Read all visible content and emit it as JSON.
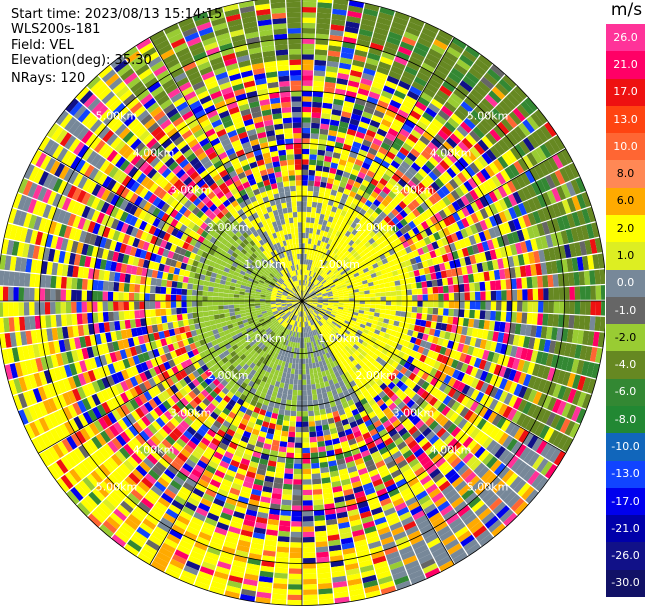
{
  "header": {
    "start_time": "Start time: 2023/08/13 15:14:15",
    "instrument": "WLS200s-181",
    "field": "Field: VEL",
    "elevation": "Elevation(deg): 35.30",
    "nrays": "NRays: 120"
  },
  "colorbar": {
    "unit": "m/s",
    "ticks": [
      "26.0",
      "21.0",
      "17.0",
      "13.0",
      "10.0",
      "8.0",
      "6.0",
      "2.0",
      "1.0",
      "0.0",
      "-1.0",
      "-2.0",
      "-4.0",
      "-6.0",
      "-8.0",
      "-10.0",
      "-13.0",
      "-17.0",
      "-21.0",
      "-26.0",
      "-30.0"
    ],
    "colors": [
      "#ff3399",
      "#ff0066",
      "#ee1111",
      "#ff4411",
      "#ff6633",
      "#ff8855",
      "#ffaa00",
      "#ffff00",
      "#ddee22",
      "#778899",
      "#666666",
      "#99cc33",
      "#668822",
      "#338833",
      "#228833",
      "#1166bb",
      "#1144ff",
      "#0000ee",
      "#0000aa",
      "#111188",
      "#111166"
    ]
  },
  "chart_data": {
    "type": "ppi",
    "field": "VEL",
    "units": "m/s",
    "n_rays": 120,
    "elevation_deg": 35.3,
    "start_time": "2023/08/13 15:14:15",
    "range_rings_km": [
      1,
      2,
      3,
      4,
      5
    ],
    "ring_labels": [
      "1.00km",
      "2.00km",
      "3.00km",
      "4.00km",
      "5.00km"
    ],
    "max_range_km": 5.8,
    "radial_spokes_deg": [
      0,
      30,
      60,
      90,
      120,
      150,
      180,
      210,
      240,
      270,
      300,
      330
    ],
    "vmin": -30.0,
    "vmax": 26.0
  }
}
